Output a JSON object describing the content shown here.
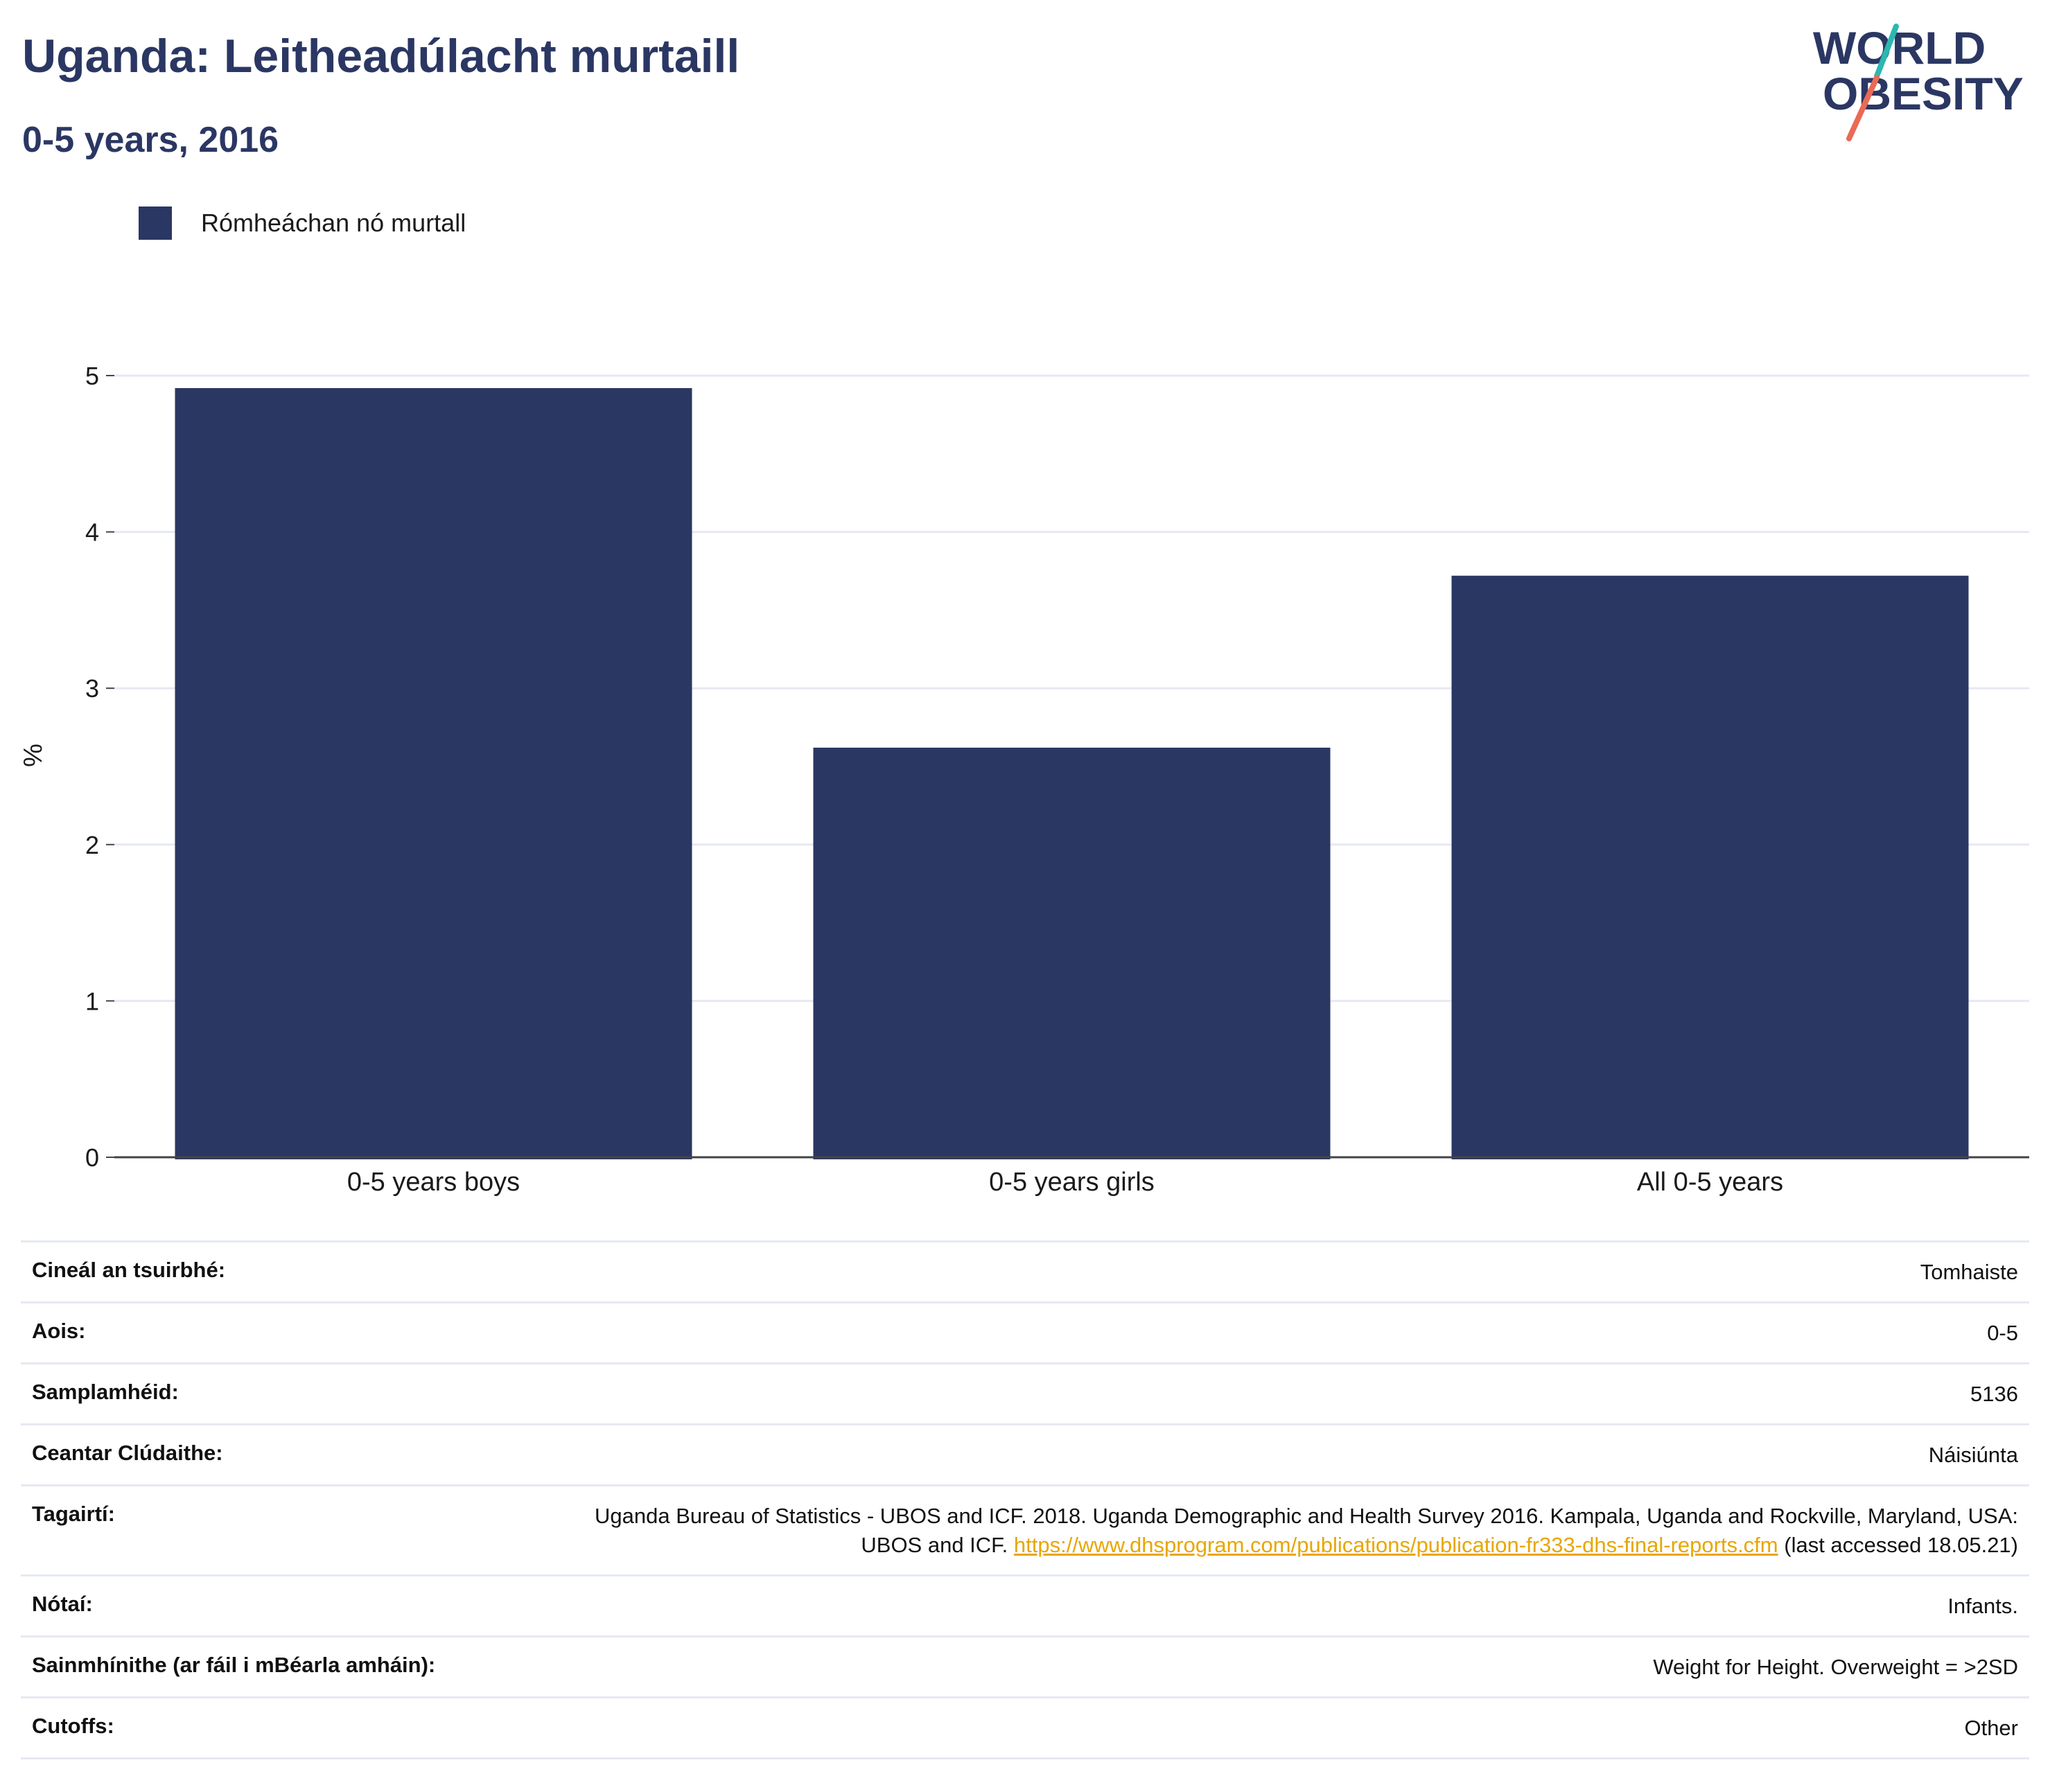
{
  "header": {
    "title": "Uganda: Leitheadúlacht murtaill",
    "subtitle": "0-5 years, 2016"
  },
  "logo": {
    "line1": "WORLD",
    "line2": "OBESITY",
    "colors": {
      "text": "#2b3763",
      "teal": "#2bb8b0",
      "coral": "#ea6a55"
    }
  },
  "chart_data": {
    "type": "bar",
    "categories": [
      "0-5 years boys",
      "0-5 years girls",
      "All 0-5 years"
    ],
    "series": [
      {
        "name": "Rómheáchan nó murtall",
        "values": [
          4.92,
          2.62,
          3.72
        ],
        "color": "#2b3763"
      }
    ],
    "ylabel": "%",
    "ylim": [
      0,
      5
    ],
    "yticks": [
      0,
      1,
      2,
      3,
      4,
      5
    ],
    "grid": true,
    "legend_position": "top-left"
  },
  "table": {
    "rows": [
      {
        "label": "Cineál an tsuirbhé:",
        "value": "Tomhaiste"
      },
      {
        "label": "Aois:",
        "value": "0-5"
      },
      {
        "label": "Samplamhéid:",
        "value": "5136"
      },
      {
        "label": "Ceantar Clúdaithe:",
        "value": "Náisiúnta"
      },
      {
        "label": "Tagairtí:",
        "value": "Uganda Bureau of Statistics - UBOS and ICF. 2018. Uganda Demographic and Health Survey 2016. Kampala, Uganda and Rockville, Maryland, USA: UBOS and ICF.",
        "link": "https://www.dhsprogram.com/publications/publication-fr333-dhs-final-reports.cfm",
        "suffix": "(last accessed 18.05.21)"
      },
      {
        "label": "Nótaí:",
        "value": "Infants."
      },
      {
        "label": "Sainmhínithe (ar fáil i mBéarla amháin):",
        "value": "Weight for Height. Overweight = >2SD"
      },
      {
        "label": "Cutoffs:",
        "value": "Other"
      }
    ]
  }
}
